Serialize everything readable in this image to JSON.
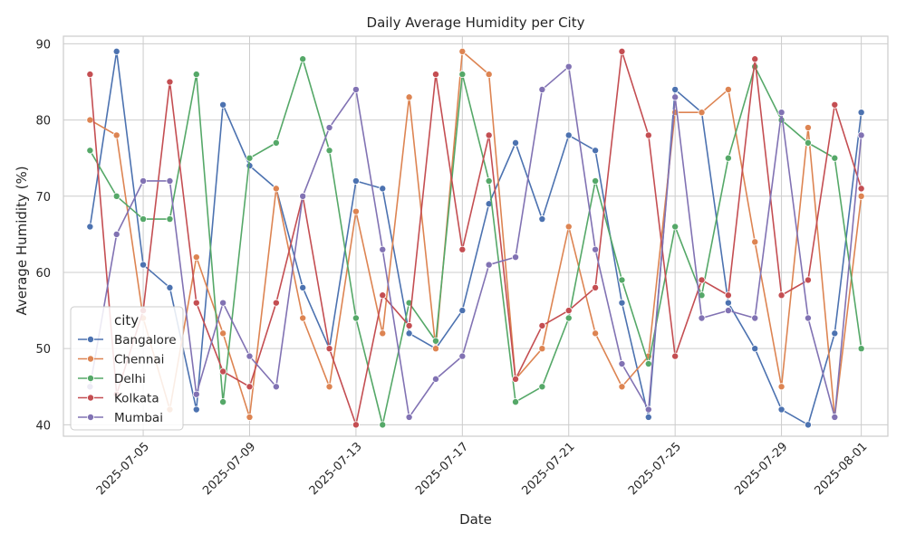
{
  "chart_data": {
    "type": "line",
    "title": "Daily Average Humidity per City",
    "xlabel": "Date",
    "ylabel": "Average Humidity (%)",
    "x": [
      "2025-07-03",
      "2025-07-04",
      "2025-07-05",
      "2025-07-06",
      "2025-07-07",
      "2025-07-08",
      "2025-07-09",
      "2025-07-10",
      "2025-07-11",
      "2025-07-12",
      "2025-07-13",
      "2025-07-14",
      "2025-07-15",
      "2025-07-16",
      "2025-07-17",
      "2025-07-18",
      "2025-07-19",
      "2025-07-20",
      "2025-07-21",
      "2025-07-22",
      "2025-07-23",
      "2025-07-24",
      "2025-07-25",
      "2025-07-26",
      "2025-07-27",
      "2025-07-28",
      "2025-07-29",
      "2025-07-30",
      "2025-07-31",
      "2025-08-01"
    ],
    "xticks": [
      "2025-07-05",
      "2025-07-09",
      "2025-07-13",
      "2025-07-17",
      "2025-07-21",
      "2025-07-25",
      "2025-07-29",
      "2025-08-01"
    ],
    "yticks": [
      40,
      50,
      60,
      70,
      80,
      90
    ],
    "ylim": [
      38.5,
      91
    ],
    "xlim": [
      "2025-07-02",
      "2025-08-02"
    ],
    "grid": true,
    "legend": {
      "title": "city",
      "placement": "lower-left"
    },
    "series": [
      {
        "name": "Bangalore",
        "color": "#4c72b0",
        "values": [
          66,
          89,
          61,
          58,
          42,
          82,
          74,
          71,
          58,
          50,
          72,
          71,
          52,
          50,
          55,
          69,
          77,
          67,
          78,
          76,
          56,
          41,
          84,
          81,
          56,
          50,
          42,
          40,
          52,
          81
        ]
      },
      {
        "name": "Chennai",
        "color": "#dd8452",
        "values": [
          80,
          78,
          54,
          42,
          62,
          52,
          41,
          71,
          54,
          45,
          68,
          52,
          83,
          50,
          89,
          86,
          46,
          50,
          66,
          52,
          45,
          49,
          81,
          81,
          84,
          64,
          45,
          79,
          41,
          70
        ]
      },
      {
        "name": "Delhi",
        "color": "#55a868",
        "values": [
          76,
          70,
          67,
          67,
          86,
          43,
          75,
          77,
          88,
          76,
          54,
          40,
          56,
          51,
          86,
          72,
          43,
          45,
          54,
          72,
          59,
          48,
          66,
          57,
          75,
          87,
          80,
          77,
          75,
          50
        ]
      },
      {
        "name": "Kolkata",
        "color": "#c44e52",
        "values": [
          86,
          44,
          55,
          85,
          56,
          47,
          45,
          56,
          70,
          50,
          40,
          57,
          53,
          86,
          63,
          78,
          46,
          53,
          55,
          58,
          89,
          78,
          49,
          59,
          57,
          88,
          57,
          59,
          82,
          71
        ]
      },
      {
        "name": "Mumbai",
        "color": "#8172b3",
        "values": [
          45,
          65,
          72,
          72,
          44,
          56,
          49,
          45,
          70,
          79,
          84,
          63,
          41,
          46,
          49,
          61,
          62,
          84,
          87,
          63,
          48,
          42,
          83,
          54,
          55,
          54,
          81,
          54,
          41,
          78
        ]
      }
    ]
  }
}
